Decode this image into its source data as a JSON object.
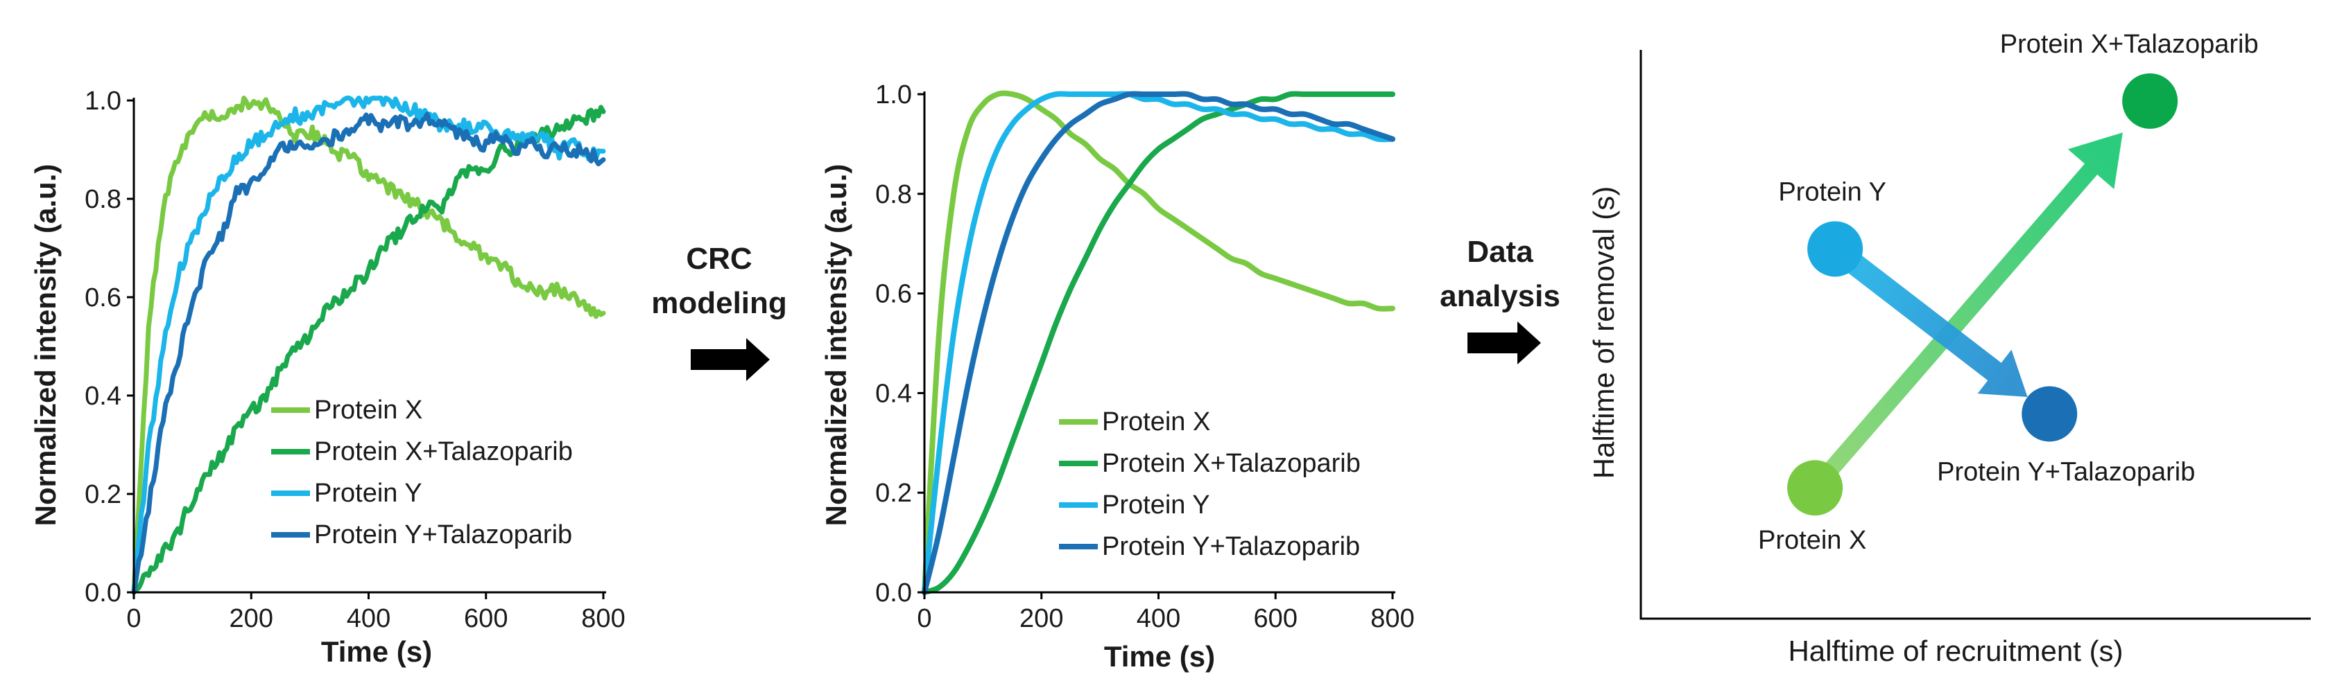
{
  "figure": {
    "arrow1_label": [
      "CRC",
      "modeling"
    ],
    "arrow2_label": [
      "Data",
      "analysis"
    ]
  },
  "chart_data": [
    {
      "type": "line",
      "title": "",
      "panel": "raw",
      "xlabel": "Time (s)",
      "ylabel": "Normalized intensity (a.u.)",
      "xlim": [
        0,
        800
      ],
      "ylim": [
        0,
        1.0
      ],
      "xticks": [
        "0",
        "200",
        "400",
        "600",
        "800"
      ],
      "yticks": [
        "0.0",
        "0.2",
        "0.4",
        "0.6",
        "0.8",
        "1.0"
      ],
      "x": [
        0,
        25,
        50,
        75,
        100,
        125,
        150,
        175,
        200,
        225,
        250,
        275,
        300,
        325,
        350,
        375,
        400,
        425,
        450,
        475,
        500,
        525,
        550,
        575,
        600,
        625,
        650,
        675,
        700,
        725,
        750,
        775,
        800
      ],
      "series": [
        {
          "name": "Protein X",
          "color": "#7ac943",
          "values": [
            0.0,
            0.55,
            0.78,
            0.89,
            0.94,
            0.97,
            0.98,
            0.99,
            1.0,
            0.98,
            0.96,
            0.94,
            0.92,
            0.91,
            0.89,
            0.87,
            0.85,
            0.83,
            0.81,
            0.79,
            0.77,
            0.75,
            0.73,
            0.71,
            0.69,
            0.67,
            0.65,
            0.63,
            0.61,
            0.6,
            0.59,
            0.58,
            0.57
          ]
        },
        {
          "name": "Protein X+Talazoparib",
          "color": "#19a84b",
          "values": [
            0.0,
            0.03,
            0.08,
            0.13,
            0.18,
            0.23,
            0.28,
            0.33,
            0.37,
            0.41,
            0.45,
            0.49,
            0.52,
            0.56,
            0.6,
            0.63,
            0.66,
            0.69,
            0.72,
            0.75,
            0.78,
            0.8,
            0.83,
            0.85,
            0.87,
            0.89,
            0.91,
            0.92,
            0.94,
            0.95,
            0.96,
            0.97,
            0.98
          ]
        },
        {
          "name": "Protein Y",
          "color": "#1cb5ea",
          "values": [
            0.0,
            0.3,
            0.5,
            0.63,
            0.72,
            0.79,
            0.84,
            0.88,
            0.91,
            0.93,
            0.95,
            0.96,
            0.97,
            0.98,
            0.99,
            0.99,
            1.0,
            0.99,
            0.99,
            0.98,
            0.97,
            0.96,
            0.96,
            0.95,
            0.94,
            0.93,
            0.93,
            0.92,
            0.92,
            0.91,
            0.91,
            0.9,
            0.9
          ]
        },
        {
          "name": "Protein Y+Talazoparib",
          "color": "#1a6fb5",
          "values": [
            0.0,
            0.18,
            0.34,
            0.47,
            0.58,
            0.67,
            0.74,
            0.8,
            0.84,
            0.87,
            0.89,
            0.91,
            0.92,
            0.93,
            0.94,
            0.95,
            0.96,
            0.96,
            0.97,
            0.96,
            0.96,
            0.95,
            0.94,
            0.93,
            0.92,
            0.92,
            0.91,
            0.91,
            0.9,
            0.9,
            0.89,
            0.89,
            0.89
          ]
        }
      ]
    },
    {
      "type": "line",
      "title": "",
      "panel": "modeled",
      "xlabel": "Time (s)",
      "ylabel": "Normalized intensity (a.u.)",
      "xlim": [
        0,
        800
      ],
      "ylim": [
        0,
        1.0
      ],
      "xticks": [
        "0",
        "200",
        "400",
        "600",
        "800"
      ],
      "yticks": [
        "0.0",
        "0.2",
        "0.4",
        "0.6",
        "0.8",
        "1.0"
      ],
      "x": [
        0,
        25,
        50,
        75,
        100,
        125,
        150,
        175,
        200,
        225,
        250,
        275,
        300,
        325,
        350,
        375,
        400,
        425,
        450,
        475,
        500,
        525,
        550,
        575,
        600,
        625,
        650,
        675,
        700,
        725,
        750,
        775,
        800
      ],
      "series": [
        {
          "name": "Protein X",
          "color": "#7ac943",
          "values": [
            0.0,
            0.52,
            0.8,
            0.93,
            0.98,
            1.0,
            1.0,
            0.99,
            0.97,
            0.95,
            0.92,
            0.9,
            0.87,
            0.85,
            0.82,
            0.8,
            0.77,
            0.75,
            0.73,
            0.71,
            0.69,
            0.67,
            0.66,
            0.64,
            0.63,
            0.62,
            0.61,
            0.6,
            0.59,
            0.58,
            0.58,
            0.57,
            0.57
          ]
        },
        {
          "name": "Protein X+Talazoparib",
          "color": "#19a84b",
          "values": [
            0.0,
            0.01,
            0.04,
            0.09,
            0.15,
            0.22,
            0.3,
            0.38,
            0.46,
            0.54,
            0.61,
            0.67,
            0.73,
            0.78,
            0.82,
            0.86,
            0.89,
            0.91,
            0.93,
            0.95,
            0.96,
            0.97,
            0.98,
            0.99,
            0.99,
            1.0,
            1.0,
            1.0,
            1.0,
            1.0,
            1.0,
            1.0,
            1.0
          ]
        },
        {
          "name": "Protein Y",
          "color": "#1cb5ea",
          "values": [
            0.0,
            0.28,
            0.52,
            0.69,
            0.81,
            0.89,
            0.94,
            0.97,
            0.99,
            1.0,
            1.0,
            1.0,
            1.0,
            1.0,
            1.0,
            0.99,
            0.99,
            0.98,
            0.98,
            0.97,
            0.97,
            0.96,
            0.96,
            0.95,
            0.95,
            0.94,
            0.94,
            0.93,
            0.93,
            0.92,
            0.92,
            0.91,
            0.91
          ]
        },
        {
          "name": "Protein Y+Talazoparib",
          "color": "#1a6fb5",
          "values": [
            0.0,
            0.12,
            0.27,
            0.42,
            0.55,
            0.66,
            0.75,
            0.82,
            0.87,
            0.91,
            0.94,
            0.96,
            0.98,
            0.99,
            1.0,
            1.0,
            1.0,
            1.0,
            1.0,
            0.99,
            0.99,
            0.98,
            0.98,
            0.97,
            0.97,
            0.96,
            0.96,
            0.95,
            0.94,
            0.94,
            0.93,
            0.92,
            0.91
          ]
        }
      ]
    },
    {
      "type": "scatter",
      "title": "",
      "panel": "summary",
      "xlabel": "Halftime of recruitment (s)",
      "ylabel": "Halftime of removal (s)",
      "xlim": [
        0,
        10
      ],
      "ylim": [
        0,
        10
      ],
      "points": [
        {
          "name": "Protein X",
          "x": 2.6,
          "y": 2.3,
          "color": "#7ac943"
        },
        {
          "name": "Protein X+Talazoparib",
          "x": 7.6,
          "y": 9.1,
          "color": "#0aa84a"
        },
        {
          "name": "Protein Y",
          "x": 2.9,
          "y": 6.5,
          "color": "#1ba9e1"
        },
        {
          "name": "Protein Y+Talazoparib",
          "x": 6.1,
          "y": 3.6,
          "color": "#1a6fb5"
        }
      ],
      "arrows": [
        {
          "from": "Protein X",
          "to": "Protein X+Talazoparib",
          "color": "#2ec86a"
        },
        {
          "from": "Protein Y",
          "to": "Protein Y+Talazoparib",
          "color": "#1ba9e1"
        }
      ]
    }
  ]
}
